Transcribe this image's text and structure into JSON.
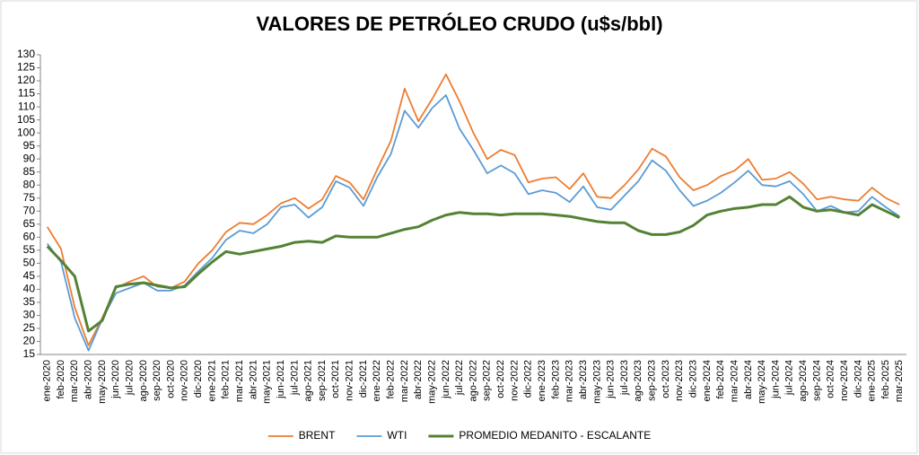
{
  "chart_data": {
    "type": "line",
    "title": "VALORES DE PETRÓLEO CRUDO (u$s/bbl)",
    "categories": [
      "ene-2020",
      "feb-2020",
      "mar-2020",
      "abr-2020",
      "may-2020",
      "jun-2020",
      "jul-2020",
      "ago-2020",
      "sep-2020",
      "oct-2020",
      "nov-2020",
      "dic-2020",
      "ene-2021",
      "feb-2021",
      "mar-2021",
      "abr-2021",
      "may-2021",
      "jun-2021",
      "jul-2021",
      "ago-2021",
      "sep-2021",
      "oct-2021",
      "nov-2021",
      "dic-2021",
      "ene-2022",
      "feb-2022",
      "mar-2022",
      "abr-2022",
      "may-2022",
      "jun-2022",
      "jul-2022",
      "ago-2022",
      "sep-2022",
      "oct-2022",
      "nov-2022",
      "dic-2022",
      "ene-2023",
      "feb-2023",
      "mar-2023",
      "abr-2023",
      "may-2023",
      "jun-2023",
      "jul-2023",
      "ago-2023",
      "sep-2023",
      "oct-2023",
      "nov-2023",
      "dic-2023",
      "ene-2024",
      "feb-2024",
      "mar-2024",
      "abr-2024",
      "may-2024",
      "jun-2024",
      "jul-2024",
      "ago-2024",
      "sep-2024",
      "oct-2024",
      "nov-2024",
      "dic-2024",
      "ene-2025",
      "feb-2025",
      "mar-2025"
    ],
    "series": [
      {
        "name": "BRENT",
        "color": "#ed7d31",
        "values": [
          64,
          55.5,
          33,
          18.5,
          29,
          40.5,
          43,
          45,
          41,
          40.5,
          43,
          50,
          55,
          62,
          65.5,
          65,
          68.5,
          73,
          75,
          71,
          74.5,
          83.5,
          81,
          74.5,
          86,
          97,
          117,
          104.5,
          113,
          122.5,
          112,
          100,
          90,
          93.5,
          91.5,
          81,
          82.5,
          83,
          78.5,
          84.5,
          75.5,
          75,
          80,
          86,
          94,
          91,
          83,
          78,
          80,
          83.5,
          85.5,
          90,
          82,
          82.5,
          85,
          80.5,
          74.5,
          75.5,
          74.5,
          74,
          79,
          75,
          72.5
        ]
      },
      {
        "name": "WTI",
        "color": "#5b9bd5",
        "values": [
          57.5,
          50.5,
          29,
          16.5,
          28.5,
          38.5,
          40.5,
          42.5,
          39.5,
          39.5,
          41.5,
          47,
          52,
          59,
          62.5,
          61.5,
          65,
          71.5,
          72.5,
          67.5,
          71.5,
          81.5,
          79,
          72,
          83,
          92,
          108.5,
          102,
          109.5,
          114.5,
          101.5,
          93.5,
          84.5,
          87.5,
          84.5,
          76.5,
          78,
          77,
          73.5,
          79.5,
          71.5,
          70.5,
          76,
          81.5,
          89.5,
          85.5,
          78,
          72,
          74,
          77,
          81,
          85.5,
          80,
          79.5,
          81.5,
          76.5,
          70,
          72,
          69.5,
          70,
          75.5,
          71.5,
          68
        ]
      },
      {
        "name": "PROMEDIO MEDANITO - ESCALANTE",
        "color": "#548235",
        "values": [
          56.5,
          51,
          45,
          24,
          28,
          41,
          42,
          42.5,
          41.5,
          40.5,
          41,
          46,
          50.5,
          54.5,
          53.5,
          54.5,
          55.5,
          56.5,
          58,
          58.5,
          58,
          60.5,
          60,
          60,
          60,
          61.5,
          63,
          64,
          66.5,
          68.5,
          69.5,
          69,
          69,
          68.5,
          69,
          69,
          69,
          68.5,
          68,
          67,
          66,
          65.5,
          65.5,
          62.5,
          61,
          61,
          62,
          64.5,
          68.5,
          70,
          71,
          71.5,
          72.5,
          72.5,
          75.5,
          71.5,
          70,
          70.5,
          69.5,
          68.5,
          72.5,
          70,
          67.5
        ]
      }
    ],
    "ylim": [
      15,
      130
    ],
    "yticks": [
      15,
      20,
      25,
      30,
      35,
      40,
      45,
      50,
      55,
      60,
      65,
      70,
      75,
      80,
      85,
      90,
      95,
      100,
      105,
      110,
      115,
      120,
      125,
      130
    ],
    "grid": false,
    "legend": "bottom"
  }
}
